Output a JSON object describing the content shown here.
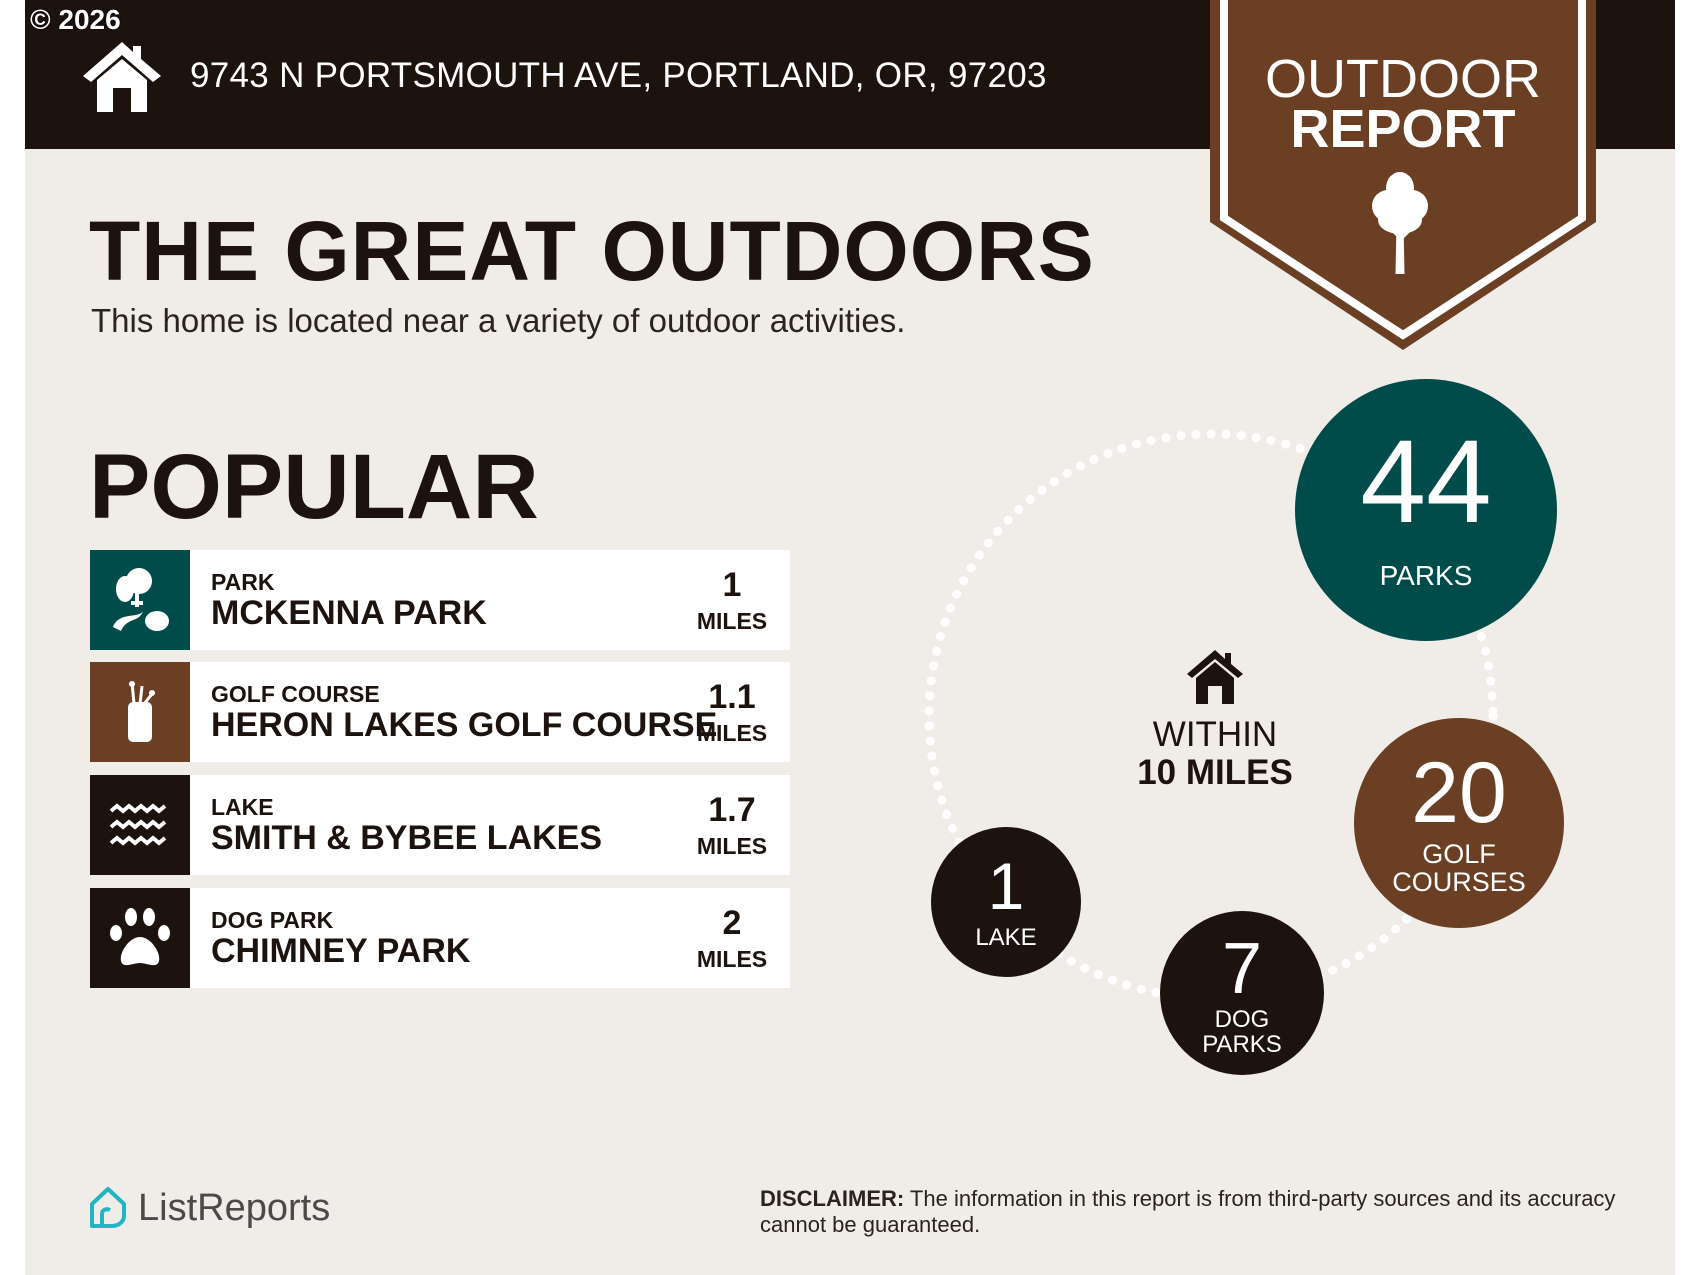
{
  "watermark": "© 2026",
  "header": {
    "address": "9743 N PORTSMOUTH AVE, PORTLAND, OR, 97203",
    "house_icon": "house-icon"
  },
  "badge": {
    "line1": "OUTDOOR",
    "line2": "REPORT",
    "icon": "tree-icon",
    "color": "#6b3f24"
  },
  "title": "THE GREAT OUTDOORS",
  "subtitle": "This home is located near a variety of outdoor activities.",
  "popular": {
    "heading": "POPULAR",
    "items": [
      {
        "category": "PARK",
        "name": "MCKENNA PARK",
        "distance": "1",
        "unit": "MILES",
        "icon": "park-trees-icon",
        "color": "#004c4a"
      },
      {
        "category": "GOLF COURSE",
        "name": "HERON LAKES GOLF COURSE",
        "distance": "1.1",
        "unit": "MILES",
        "icon": "golf-bag-icon",
        "color": "#6b3f24"
      },
      {
        "category": "LAKE",
        "name": "SMITH & BYBEE LAKES",
        "distance": "1.7",
        "unit": "MILES",
        "icon": "waves-icon",
        "color": "#1c120e"
      },
      {
        "category": "DOG PARK",
        "name": "CHIMNEY PARK",
        "distance": "2",
        "unit": "MILES",
        "icon": "paw-icon",
        "color": "#1c120e"
      }
    ]
  },
  "nearby": {
    "within_line1": "WITHIN",
    "within_line2": "10 MILES",
    "counts": [
      {
        "value": "44",
        "label": "PARKS",
        "color": "#004c4a"
      },
      {
        "value": "20",
        "label": "GOLF COURSES",
        "color": "#6b3f24"
      },
      {
        "value": "7",
        "label": "DOG PARKS",
        "color": "#1c120e"
      },
      {
        "value": "1",
        "label": "LAKE",
        "color": "#1c120e"
      }
    ]
  },
  "footer": {
    "logo": "ListReports",
    "disclaimer_label": "DISCLAIMER:",
    "disclaimer_text": " The information in this report is from third-party sources and its accuracy cannot be guaranteed."
  }
}
